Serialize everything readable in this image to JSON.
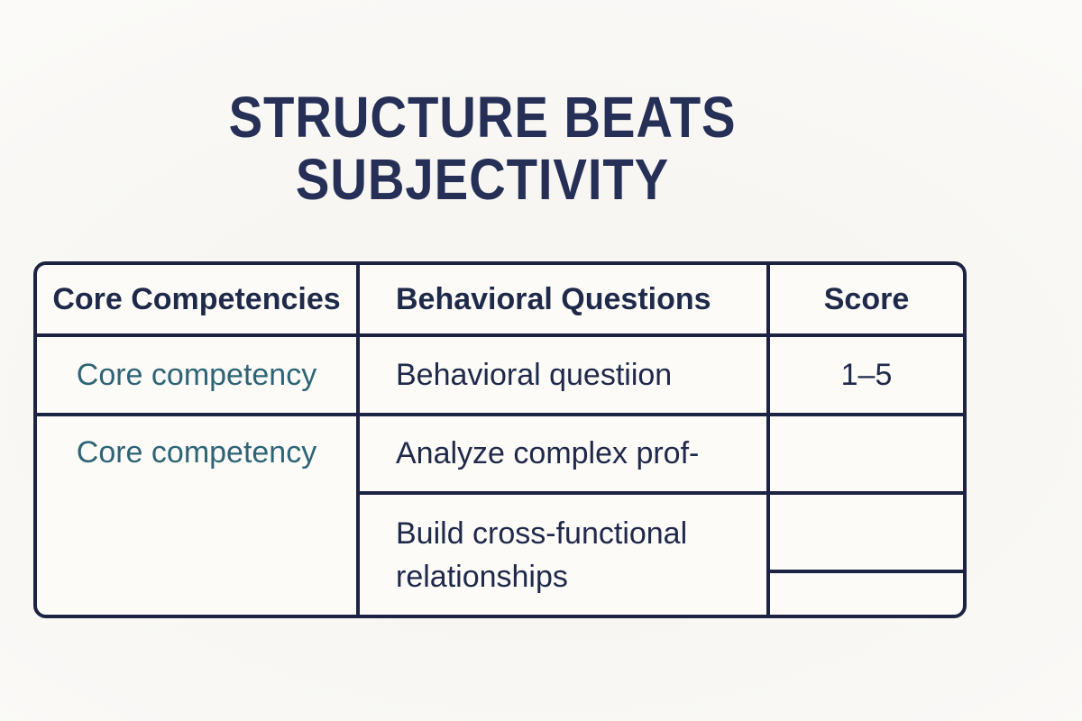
{
  "title": {
    "line1": "STRUCTURE BEATS",
    "line2": "SUBJECTIVITY"
  },
  "table": {
    "headers": {
      "competencies": "Core Competencies",
      "questions": "Behavioral Questions",
      "score": "Score"
    },
    "rows": {
      "row1": {
        "competency": "Core competency",
        "question": "Behavioral questiion",
        "score": "1–5"
      },
      "row2": {
        "competency": "Core competency",
        "question": "Analyze complex prof-",
        "score": ""
      },
      "row3": {
        "question": "Build cross-functional relationships",
        "score_top": "",
        "score_bottom": ""
      }
    }
  },
  "colors": {
    "navy_text": "#20294a",
    "title_navy": "#262f55",
    "border_navy": "#1d2443",
    "teal": "#2e6476",
    "background": "#f7f5f1",
    "cell_background": "#fcfbf8"
  }
}
